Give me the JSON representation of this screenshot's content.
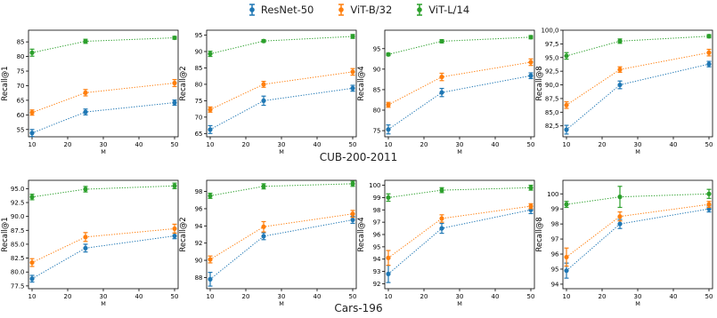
{
  "legend": [
    {
      "name": "ResNet-50",
      "color": "#1f77b4"
    },
    {
      "name": "ViT-B/32",
      "color": "#ff7f0e"
    },
    {
      "name": "ViT-L/14",
      "color": "#2ca02c"
    }
  ],
  "row_titles": [
    "CUB-200-2011",
    "Cars-196"
  ],
  "chart_data": [
    {
      "type": "line",
      "dataset": "CUB-200-2011",
      "xlabel": "M",
      "ylabel": "Recall@1",
      "x": [
        10,
        25,
        50
      ],
      "xlim": [
        9,
        51
      ],
      "xticks": [
        10,
        20,
        30,
        40,
        50
      ],
      "ylim": [
        52.5,
        89
      ],
      "yticks": [
        55,
        60,
        65,
        70,
        75,
        80,
        85
      ],
      "ytick_labels": [
        "55",
        "60",
        "65",
        "70",
        "75",
        "80",
        "85"
      ],
      "series": [
        {
          "name": "ResNet-50",
          "values": [
            53.8,
            61.0,
            64.2
          ],
          "err": [
            1.2,
            1.0,
            0.9
          ]
        },
        {
          "name": "ViT-B/32",
          "values": [
            60.8,
            67.6,
            70.9
          ],
          "err": [
            0.9,
            1.1,
            1.2
          ]
        },
        {
          "name": "ViT-L/14",
          "values": [
            81.3,
            85.2,
            86.4
          ],
          "err": [
            1.2,
            0.7,
            0.5
          ]
        }
      ]
    },
    {
      "type": "line",
      "dataset": "CUB-200-2011",
      "xlabel": "M",
      "ylabel": "Recall@2",
      "x": [
        10,
        25,
        50
      ],
      "xlim": [
        9,
        51
      ],
      "xticks": [
        10,
        20,
        30,
        40,
        50
      ],
      "ylim": [
        64,
        96.5
      ],
      "yticks": [
        65,
        70,
        75,
        80,
        85,
        90,
        95
      ],
      "ytick_labels": [
        "65",
        "70",
        "75",
        "80",
        "85",
        "90",
        "95"
      ],
      "series": [
        {
          "name": "ResNet-50",
          "values": [
            66.2,
            75.0,
            78.8
          ],
          "err": [
            1.2,
            1.4,
            0.9
          ]
        },
        {
          "name": "ViT-B/32",
          "values": [
            72.3,
            80.0,
            83.8
          ],
          "err": [
            0.8,
            0.9,
            1.0
          ]
        },
        {
          "name": "ViT-L/14",
          "values": [
            89.3,
            93.2,
            94.6
          ],
          "err": [
            0.8,
            0.4,
            0.6
          ]
        }
      ]
    },
    {
      "type": "line",
      "dataset": "CUB-200-2011",
      "xlabel": "M",
      "ylabel": "Recall@4",
      "x": [
        10,
        25,
        50
      ],
      "xlim": [
        9,
        51
      ],
      "xticks": [
        10,
        20,
        30,
        40,
        50
      ],
      "ylim": [
        73.5,
        99.5
      ],
      "yticks": [
        75,
        80,
        85,
        90,
        95
      ],
      "ytick_labels": [
        "75",
        "80",
        "85",
        "90",
        "95"
      ],
      "series": [
        {
          "name": "ResNet-50",
          "values": [
            75.3,
            84.3,
            88.4
          ],
          "err": [
            1.1,
            1.0,
            0.7
          ]
        },
        {
          "name": "ViT-B/32",
          "values": [
            81.3,
            88.1,
            91.7
          ],
          "err": [
            0.6,
            0.9,
            0.8
          ]
        },
        {
          "name": "ViT-L/14",
          "values": [
            93.6,
            96.8,
            97.8
          ],
          "err": [
            0.3,
            0.4,
            0.4
          ]
        }
      ]
    },
    {
      "type": "line",
      "dataset": "CUB-200-2011",
      "xlabel": "M",
      "ylabel": "Recall@8",
      "x": [
        10,
        25,
        50
      ],
      "xlim": [
        9,
        51
      ],
      "xticks": [
        10,
        20,
        30,
        40,
        50
      ],
      "ylim": [
        80.5,
        100
      ],
      "yticks": [
        82.5,
        85.0,
        87.5,
        90.0,
        92.5,
        95.0,
        97.5,
        100.0
      ],
      "ytick_labels": [
        "82,5",
        "85,0",
        "87,5",
        "90,0",
        "92,5",
        "95,0",
        "97,5",
        "100,0"
      ],
      "series": [
        {
          "name": "ResNet-50",
          "values": [
            81.8,
            90.0,
            93.8
          ],
          "err": [
            0.8,
            0.7,
            0.5
          ]
        },
        {
          "name": "ViT-B/32",
          "values": [
            86.3,
            92.8,
            95.9
          ],
          "err": [
            0.6,
            0.5,
            0.6
          ]
        },
        {
          "name": "ViT-L/14",
          "values": [
            95.3,
            98.0,
            98.9
          ],
          "err": [
            0.6,
            0.4,
            0.3
          ]
        }
      ]
    },
    {
      "type": "line",
      "dataset": "Cars-196",
      "xlabel": "M",
      "ylabel": "Recall@1",
      "x": [
        10,
        25,
        50
      ],
      "xlim": [
        9,
        51
      ],
      "xticks": [
        10,
        20,
        30,
        40,
        50
      ],
      "ylim": [
        77,
        96.5
      ],
      "yticks": [
        77.5,
        80.0,
        82.5,
        85.0,
        87.5,
        90.0,
        92.5,
        95.0
      ],
      "ytick_labels": [
        "77.5",
        "80.0",
        "82.5",
        "85.0",
        "87.5",
        "90.0",
        "92.5",
        "95.0"
      ],
      "series": [
        {
          "name": "ResNet-50",
          "values": [
            78.8,
            84.3,
            86.5
          ],
          "err": [
            0.6,
            0.7,
            0.5
          ]
        },
        {
          "name": "ViT-B/32",
          "values": [
            81.7,
            86.3,
            87.8
          ],
          "err": [
            0.7,
            0.8,
            0.8
          ]
        },
        {
          "name": "ViT-L/14",
          "values": [
            93.5,
            94.9,
            95.5
          ],
          "err": [
            0.5,
            0.5,
            0.5
          ]
        }
      ]
    },
    {
      "type": "line",
      "dataset": "Cars-196",
      "xlabel": "M",
      "ylabel": "Recall@2",
      "x": [
        10,
        25,
        50
      ],
      "xlim": [
        9,
        51
      ],
      "xticks": [
        10,
        20,
        30,
        40,
        50
      ],
      "ylim": [
        86.7,
        99.3
      ],
      "yticks": [
        88,
        90,
        92,
        94,
        96,
        98
      ],
      "ytick_labels": [
        "88",
        "90",
        "92",
        "94",
        "96",
        "98"
      ],
      "series": [
        {
          "name": "ResNet-50",
          "values": [
            87.8,
            92.8,
            94.7
          ],
          "err": [
            0.8,
            0.4,
            0.4
          ]
        },
        {
          "name": "ViT-B/32",
          "values": [
            90.1,
            93.9,
            95.4
          ],
          "err": [
            0.4,
            0.6,
            0.4
          ]
        },
        {
          "name": "ViT-L/14",
          "values": [
            97.5,
            98.6,
            98.9
          ],
          "err": [
            0.3,
            0.3,
            0.3
          ]
        }
      ]
    },
    {
      "type": "line",
      "dataset": "Cars-196",
      "xlabel": "M",
      "ylabel": "Recall@4",
      "x": [
        10,
        25,
        50
      ],
      "xlim": [
        9,
        51
      ],
      "xticks": [
        10,
        20,
        30,
        40,
        50
      ],
      "ylim": [
        91.6,
        100.4
      ],
      "yticks": [
        92,
        93,
        94,
        95,
        96,
        97,
        98,
        99,
        100
      ],
      "ytick_labels": [
        "92",
        "93",
        "94",
        "95",
        "96",
        "97",
        "98",
        "99",
        "100"
      ],
      "series": [
        {
          "name": "ResNet-50",
          "values": [
            92.8,
            96.5,
            98.0
          ],
          "err": [
            0.7,
            0.4,
            0.3
          ]
        },
        {
          "name": "ViT-B/32",
          "values": [
            94.1,
            97.3,
            98.3
          ],
          "err": [
            0.6,
            0.3,
            0.2
          ]
        },
        {
          "name": "ViT-L/14",
          "values": [
            99.0,
            99.6,
            99.8
          ],
          "err": [
            0.3,
            0.2,
            0.2
          ]
        }
      ]
    },
    {
      "type": "line",
      "dataset": "Cars-196",
      "xlabel": "M",
      "ylabel": "Recall@8",
      "x": [
        10,
        25,
        50
      ],
      "xlim": [
        9,
        51
      ],
      "xticks": [
        10,
        20,
        30,
        40,
        50
      ],
      "ylim": [
        93.7,
        100.9
      ],
      "yticks": [
        94,
        95,
        96,
        97,
        98,
        99,
        100
      ],
      "ytick_labels": [
        "94",
        "95",
        "96",
        "97",
        "98",
        "99",
        "100"
      ],
      "series": [
        {
          "name": "ResNet-50",
          "values": [
            94.9,
            98.0,
            99.0
          ],
          "err": [
            0.5,
            0.3,
            0.2
          ]
        },
        {
          "name": "ViT-B/32",
          "values": [
            95.8,
            98.5,
            99.3
          ],
          "err": [
            0.6,
            0.3,
            0.2
          ]
        },
        {
          "name": "ViT-L/14",
          "values": [
            99.3,
            99.8,
            100.0
          ],
          "err": [
            0.2,
            0.7,
            0.3
          ]
        }
      ]
    }
  ]
}
